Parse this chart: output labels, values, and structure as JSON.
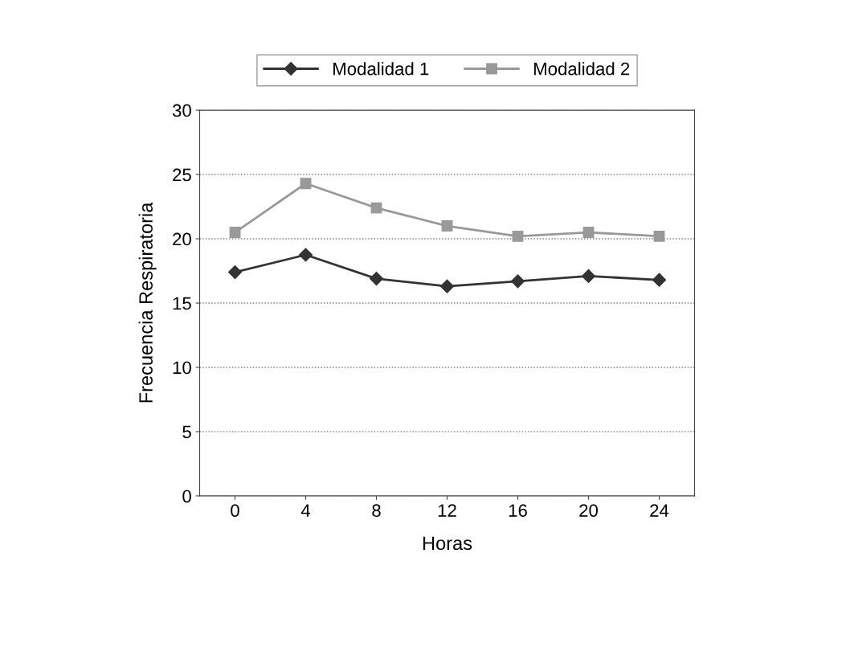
{
  "chart_data": {
    "type": "line",
    "xlabel": "Horas",
    "ylabel": "Frecuencia Respiratoria",
    "categories": [
      "0",
      "4",
      "8",
      "12",
      "16",
      "20",
      "24"
    ],
    "series": [
      {
        "name": "Modalidad 1",
        "color": "#333333",
        "marker": "diamond",
        "values": [
          17.4,
          18.75,
          16.9,
          16.3,
          16.7,
          17.1,
          16.8
        ]
      },
      {
        "name": "Modalidad 2",
        "color": "#999999",
        "marker": "square",
        "values": [
          20.5,
          24.3,
          22.4,
          21.0,
          20.2,
          20.5,
          20.2
        ]
      }
    ],
    "ylim": [
      0,
      30
    ],
    "yticks": [
      0,
      5,
      10,
      15,
      20,
      25,
      30
    ],
    "grid": "y",
    "legend": "top",
    "line_style": "solid"
  }
}
